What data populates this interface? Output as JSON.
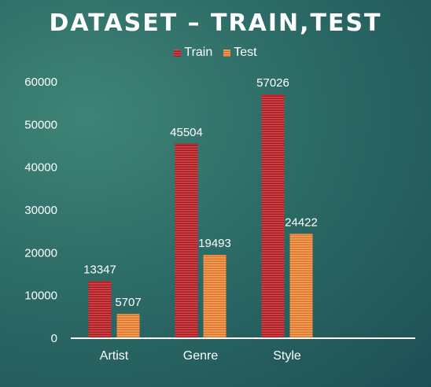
{
  "chart_data": {
    "type": "bar",
    "title": "DATASET – TRAIN,TEST",
    "categories": [
      "Artist",
      "Genre",
      "Style"
    ],
    "series": [
      {
        "name": "Train",
        "values": [
          13347,
          45504,
          57026
        ],
        "color": "#c0272d"
      },
      {
        "name": "Test",
        "values": [
          5707,
          19493,
          24422
        ],
        "color": "#ee8a3e"
      }
    ],
    "ylim": [
      0,
      60000
    ],
    "yticks": [
      "0",
      "10000",
      "20000",
      "30000",
      "40000",
      "50000",
      "60000"
    ],
    "grid": false,
    "legend": "top-center",
    "data_labels": true
  }
}
